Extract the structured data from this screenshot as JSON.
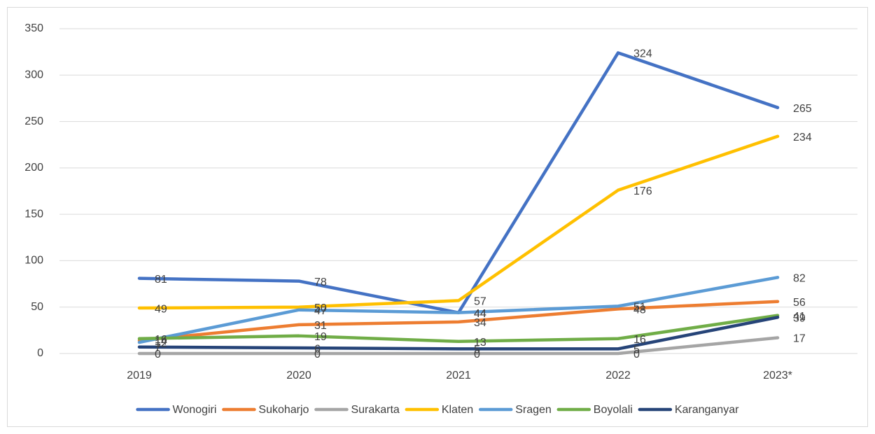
{
  "chart_data": {
    "type": "line",
    "categories": [
      "2019",
      "2020",
      "2021",
      "2022",
      "2023*"
    ],
    "series": [
      {
        "name": "Wonogiri",
        "color": "#4472c4",
        "values": [
          81,
          78,
          44,
          324,
          265
        ]
      },
      {
        "name": "Sukoharjo",
        "color": "#ed7d31",
        "values": [
          14,
          31,
          34,
          48,
          56
        ]
      },
      {
        "name": "Surakarta",
        "color": "#a5a5a5",
        "values": [
          0,
          0,
          0,
          0,
          17
        ]
      },
      {
        "name": "Klaten",
        "color": "#ffc000",
        "values": [
          49,
          50,
          57,
          176,
          234
        ]
      },
      {
        "name": "Sragen",
        "color": "#5b9bd5",
        "values": [
          12,
          47,
          44,
          51,
          82
        ]
      },
      {
        "name": "Boyolali",
        "color": "#70ad47",
        "values": [
          16,
          19,
          13,
          16,
          41
        ]
      },
      {
        "name": "Karanganyar",
        "color": "#264478",
        "values": [
          7,
          6,
          5,
          5,
          39
        ]
      }
    ],
    "ylim": [
      0,
      350
    ],
    "yticks": [
      0,
      50,
      100,
      150,
      200,
      250,
      300,
      350
    ],
    "grid": true,
    "legend": "bottom"
  }
}
